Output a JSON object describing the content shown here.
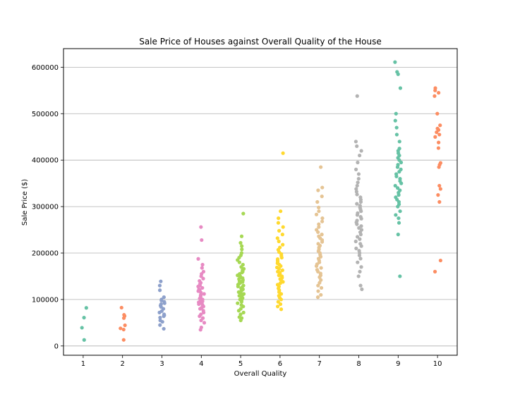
{
  "chart_data": {
    "type": "scatter",
    "subtype": "strip",
    "title": "Sale Price of Houses against Overall Quality of the House",
    "xlabel": "Overall Quality",
    "ylabel": "Sale Price ($)",
    "categories": [
      "1",
      "2",
      "3",
      "4",
      "5",
      "6",
      "7",
      "8",
      "9",
      "10"
    ],
    "ylim": [
      -20000,
      640000
    ],
    "yticks": [
      0,
      100000,
      200000,
      300000,
      400000,
      500000,
      600000
    ],
    "grid": "horizontal",
    "legend": "none",
    "palette": [
      "#66c2a5",
      "#fc8d62",
      "#8da0cb",
      "#e78ac3",
      "#a6d854",
      "#ffd92f",
      "#e5c494",
      "#b3b3b3",
      "#66c2a5",
      "#fc8d62"
    ],
    "series": [
      {
        "category": "1",
        "values": [
          13000,
          39300,
          61000,
          82000
        ]
      },
      {
        "category": "2",
        "values": [
          13100,
          35300,
          37900,
          44500,
          60000,
          64500,
          67000,
          82500
        ]
      },
      {
        "category": "3",
        "values": [
          37000,
          45000,
          52000,
          55000,
          61000,
          64000,
          66000,
          68000,
          72000,
          75000,
          80000,
          84000,
          87000,
          90000,
          92000,
          95000,
          98000,
          100000,
          105000,
          120000,
          130000,
          139000
        ]
      },
      {
        "category": "4",
        "values": [
          34900,
          40000,
          50000,
          55000,
          60000,
          64000,
          68000,
          72000,
          76000,
          80000,
          82000,
          85000,
          88000,
          90000,
          92000,
          94000,
          96000,
          98000,
          100000,
          102000,
          105000,
          108000,
          110000,
          112000,
          115000,
          118000,
          120000,
          122000,
          125000,
          128000,
          130000,
          133000,
          136000,
          140000,
          145000,
          150000,
          155000,
          160000,
          168000,
          175000,
          187500,
          228000,
          256000
        ]
      },
      {
        "category": "5",
        "values": [
          55000,
          60000,
          62000,
          68000,
          72000,
          76000,
          80000,
          85000,
          88000,
          92000,
          95000,
          98000,
          100000,
          103000,
          105000,
          108000,
          110000,
          112000,
          114000,
          116000,
          118000,
          120000,
          122000,
          124000,
          126000,
          128000,
          130000,
          132000,
          134000,
          136000,
          138000,
          140000,
          142000,
          144000,
          146000,
          148000,
          150000,
          152000,
          155000,
          158000,
          160000,
          163000,
          166000,
          170000,
          175000,
          180000,
          185000,
          190000,
          195000,
          200000,
          208000,
          215000,
          222000,
          236000,
          285000
        ]
      },
      {
        "category": "6",
        "values": [
          79000,
          85000,
          90000,
          95000,
          100000,
          104000,
          108000,
          112000,
          116000,
          120000,
          124000,
          128000,
          132000,
          135000,
          138000,
          141000,
          144000,
          147000,
          150000,
          152000,
          155000,
          158000,
          160000,
          163000,
          166000,
          169000,
          172000,
          175000,
          178000,
          181000,
          184000,
          187000,
          190000,
          194000,
          198000,
          202000,
          207000,
          212000,
          218000,
          225000,
          232000,
          240000,
          248000,
          256000,
          265000,
          275000,
          290000,
          415000
        ]
      },
      {
        "category": "7",
        "values": [
          105000,
          110000,
          118000,
          125000,
          130000,
          136000,
          142000,
          148000,
          152000,
          156000,
          160000,
          164000,
          168000,
          172000,
          176000,
          180000,
          184000,
          188000,
          192000,
          196000,
          200000,
          204000,
          208000,
          212000,
          216000,
          220000,
          224000,
          228000,
          232000,
          236000,
          240000,
          245000,
          250000,
          256000,
          262000,
          268000,
          275000,
          283000,
          290000,
          298000,
          310000,
          322000,
          335000,
          341000,
          385000
        ]
      },
      {
        "category": "8",
        "values": [
          122000,
          130000,
          150000,
          160000,
          170000,
          180000,
          188000,
          195000,
          200000,
          205000,
          210000,
          215000,
          220000,
          225000,
          230000,
          235000,
          240000,
          245000,
          250000,
          254000,
          258000,
          262000,
          266000,
          270000,
          274000,
          278000,
          282000,
          286000,
          290000,
          294000,
          298000,
          302000,
          306000,
          310000,
          315000,
          320000,
          326000,
          332000,
          338000,
          345000,
          352000,
          360000,
          370000,
          380000,
          395000,
          410000,
          420000,
          430000,
          440000,
          538000
        ]
      },
      {
        "category": "9",
        "values": [
          150000,
          240000,
          265000,
          275000,
          282000,
          290000,
          300000,
          305000,
          310000,
          315000,
          320000,
          325000,
          330000,
          335000,
          340000,
          345000,
          350000,
          355000,
          360000,
          365000,
          370000,
          375000,
          380000,
          385000,
          390000,
          395000,
          400000,
          405000,
          410000,
          415000,
          420000,
          425000,
          440000,
          455000,
          470000,
          485000,
          500000,
          555000,
          585000,
          590000,
          611000
        ]
      },
      {
        "category": "10",
        "values": [
          160000,
          184000,
          310000,
          325000,
          338000,
          345000,
          385000,
          390000,
          394000,
          426000,
          438000,
          450000,
          455000,
          460000,
          465000,
          468000,
          475000,
          500000,
          538000,
          545000,
          550000,
          555000
        ]
      }
    ]
  }
}
